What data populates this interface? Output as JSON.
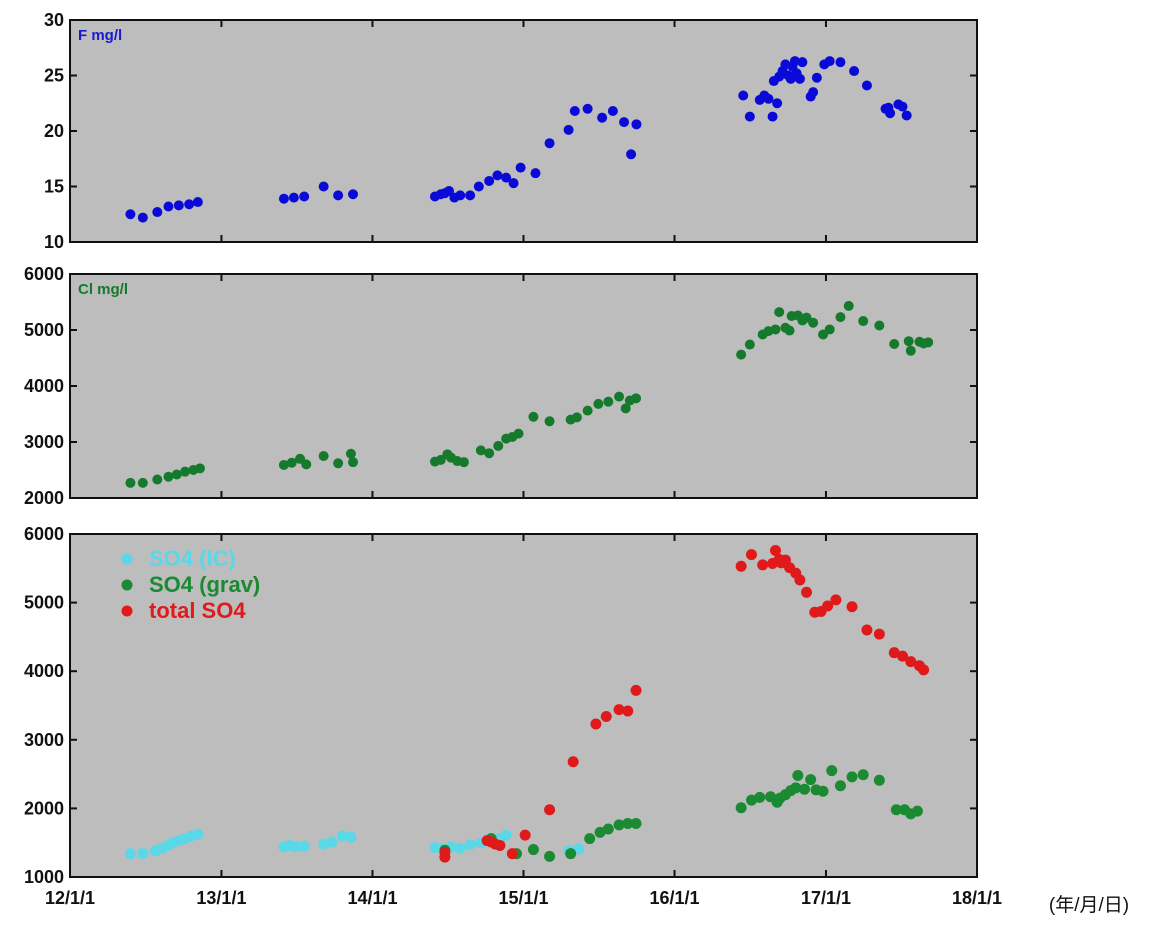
{
  "chart_data": [
    {
      "type": "scatter",
      "panel_label": "F mg/l",
      "label_color": "#1a1ad0",
      "ylim": [
        10,
        30
      ],
      "yticks": [
        10,
        15,
        20,
        25,
        30
      ],
      "grid": false,
      "series": [
        {
          "color": "#0a0ad8",
          "points": [
            [
              "2012-05-26",
              12.5
            ],
            [
              "2012-06-25",
              12.2
            ],
            [
              "2012-07-30",
              12.7
            ],
            [
              "2012-08-26",
              13.2
            ],
            [
              "2012-09-20",
              13.3
            ],
            [
              "2012-10-15",
              13.4
            ],
            [
              "2012-11-05",
              13.6
            ],
            [
              "2013-06-01",
              13.9
            ],
            [
              "2013-06-25",
              14.0
            ],
            [
              "2013-07-20",
              14.1
            ],
            [
              "2013-09-05",
              15.0
            ],
            [
              "2013-10-10",
              14.2
            ],
            [
              "2013-11-15",
              14.3
            ],
            [
              "2014-06-01",
              14.1
            ],
            [
              "2014-06-15",
              14.3
            ],
            [
              "2014-06-25",
              14.4
            ],
            [
              "2014-07-05",
              14.6
            ],
            [
              "2014-07-18",
              14.0
            ],
            [
              "2014-08-01",
              14.2
            ],
            [
              "2014-08-25",
              14.2
            ],
            [
              "2014-09-15",
              15.0
            ],
            [
              "2014-10-10",
              15.5
            ],
            [
              "2014-10-30",
              16.0
            ],
            [
              "2014-11-20",
              15.8
            ],
            [
              "2014-12-08",
              15.3
            ],
            [
              "2014-12-25",
              16.7
            ],
            [
              "2015-01-30",
              16.2
            ],
            [
              "2015-03-05",
              18.9
            ],
            [
              "2015-04-20",
              20.1
            ],
            [
              "2015-05-05",
              21.8
            ],
            [
              "2015-06-05",
              22.0
            ],
            [
              "2015-07-10",
              21.2
            ],
            [
              "2015-08-05",
              21.8
            ],
            [
              "2015-09-01",
              20.8
            ],
            [
              "2015-09-18",
              17.9
            ],
            [
              "2015-10-01",
              20.6
            ],
            [
              "2016-06-15",
              23.2
            ],
            [
              "2016-07-01",
              21.3
            ],
            [
              "2016-07-25",
              22.8
            ],
            [
              "2016-08-05",
              23.2
            ],
            [
              "2016-08-15",
              22.9
            ],
            [
              "2016-08-25",
              21.3
            ],
            [
              "2016-08-28",
              24.5
            ],
            [
              "2016-09-05",
              22.5
            ],
            [
              "2016-09-10",
              24.9
            ],
            [
              "2016-09-18",
              25.4
            ],
            [
              "2016-09-25",
              26.0
            ],
            [
              "2016-10-02",
              25.0
            ],
            [
              "2016-10-08",
              24.7
            ],
            [
              "2016-10-12",
              25.8
            ],
            [
              "2016-10-18",
              26.3
            ],
            [
              "2016-10-22",
              25.2
            ],
            [
              "2016-10-30",
              24.7
            ],
            [
              "2016-11-05",
              26.2
            ],
            [
              "2016-11-25",
              23.1
            ],
            [
              "2016-12-01",
              23.5
            ],
            [
              "2016-12-10",
              24.8
            ],
            [
              "2016-12-28",
              26.0
            ],
            [
              "2017-01-10",
              26.3
            ],
            [
              "2017-02-05",
              26.2
            ],
            [
              "2017-03-10",
              25.4
            ],
            [
              "2017-04-10",
              24.1
            ],
            [
              "2017-05-25",
              22.0
            ],
            [
              "2017-06-01",
              22.1
            ],
            [
              "2017-06-05",
              21.6
            ],
            [
              "2017-06-25",
              22.4
            ],
            [
              "2017-07-05",
              22.2
            ],
            [
              "2017-07-15",
              21.4
            ]
          ]
        }
      ]
    },
    {
      "type": "scatter",
      "panel_label": "Cl mg/l",
      "label_color": "#137a2a",
      "ylim": [
        2000,
        6000
      ],
      "yticks": [
        2000,
        3000,
        4000,
        5000,
        6000
      ],
      "grid": false,
      "series": [
        {
          "color": "#167a2c",
          "points": [
            [
              "2012-05-26",
              2270
            ],
            [
              "2012-06-25",
              2270
            ],
            [
              "2012-07-30",
              2330
            ],
            [
              "2012-08-26",
              2380
            ],
            [
              "2012-09-15",
              2420
            ],
            [
              "2012-10-05",
              2470
            ],
            [
              "2012-10-25",
              2500
            ],
            [
              "2012-11-10",
              2530
            ],
            [
              "2013-06-01",
              2590
            ],
            [
              "2013-06-20",
              2630
            ],
            [
              "2013-07-10",
              2700
            ],
            [
              "2013-07-25",
              2600
            ],
            [
              "2013-09-05",
              2750
            ],
            [
              "2013-10-10",
              2620
            ],
            [
              "2013-11-10",
              2790
            ],
            [
              "2013-11-15",
              2640
            ],
            [
              "2014-06-01",
              2650
            ],
            [
              "2014-06-15",
              2680
            ],
            [
              "2014-07-01",
              2780
            ],
            [
              "2014-07-10",
              2720
            ],
            [
              "2014-07-25",
              2660
            ],
            [
              "2014-08-10",
              2640
            ],
            [
              "2014-09-20",
              2850
            ],
            [
              "2014-10-10",
              2800
            ],
            [
              "2014-11-01",
              2930
            ],
            [
              "2014-11-20",
              3060
            ],
            [
              "2014-12-05",
              3090
            ],
            [
              "2014-12-20",
              3150
            ],
            [
              "2015-01-25",
              3450
            ],
            [
              "2015-03-05",
              3370
            ],
            [
              "2015-04-25",
              3400
            ],
            [
              "2015-05-10",
              3440
            ],
            [
              "2015-06-05",
              3560
            ],
            [
              "2015-07-01",
              3680
            ],
            [
              "2015-07-25",
              3720
            ],
            [
              "2015-08-20",
              3810
            ],
            [
              "2015-09-05",
              3600
            ],
            [
              "2015-09-15",
              3740
            ],
            [
              "2015-09-30",
              3780
            ],
            [
              "2016-06-10",
              4560
            ],
            [
              "2016-07-01",
              4740
            ],
            [
              "2016-08-01",
              4920
            ],
            [
              "2016-08-15",
              4980
            ],
            [
              "2016-09-01",
              5010
            ],
            [
              "2016-09-10",
              5320
            ],
            [
              "2016-09-25",
              5040
            ],
            [
              "2016-10-05",
              4990
            ],
            [
              "2016-10-10",
              5250
            ],
            [
              "2016-10-25",
              5260
            ],
            [
              "2016-11-05",
              5170
            ],
            [
              "2016-11-15",
              5220
            ],
            [
              "2016-12-01",
              5130
            ],
            [
              "2016-12-25",
              4920
            ],
            [
              "2017-01-10",
              5010
            ],
            [
              "2017-02-05",
              5230
            ],
            [
              "2017-02-25",
              5430
            ],
            [
              "2017-04-01",
              5160
            ],
            [
              "2017-05-10",
              5080
            ],
            [
              "2017-06-15",
              4750
            ],
            [
              "2017-07-20",
              4800
            ],
            [
              "2017-07-25",
              4630
            ],
            [
              "2017-08-15",
              4790
            ],
            [
              "2017-08-25",
              4760
            ],
            [
              "2017-09-05",
              4780
            ]
          ]
        }
      ]
    },
    {
      "type": "scatter",
      "ylim": [
        1000,
        6000
      ],
      "yticks": [
        1000,
        2000,
        3000,
        4000,
        5000,
        6000
      ],
      "grid": false,
      "legend_position": "top-left",
      "x_tick_labels": [
        "12/1/1",
        "13/1/1",
        "14/1/1",
        "15/1/1",
        "16/1/1",
        "17/1/1",
        "18/1/1"
      ],
      "x_unit_label": "(年/月/日)",
      "xlim": [
        "2012-01-01",
        "2018-01-01"
      ],
      "series": [
        {
          "name": "SO4 (IC)",
          "color": "#5ad8e8",
          "points": [
            [
              "2012-05-26",
              1340
            ],
            [
              "2012-06-25",
              1340
            ],
            [
              "2012-07-25",
              1380
            ],
            [
              "2012-08-10",
              1420
            ],
            [
              "2012-08-25",
              1460
            ],
            [
              "2012-09-05",
              1500
            ],
            [
              "2012-09-20",
              1530
            ],
            [
              "2012-10-05",
              1560
            ],
            [
              "2012-10-20",
              1600
            ],
            [
              "2012-11-05",
              1620
            ],
            [
              "2013-06-01",
              1440
            ],
            [
              "2013-06-15",
              1460
            ],
            [
              "2013-07-01",
              1440
            ],
            [
              "2013-07-20",
              1450
            ],
            [
              "2013-09-05",
              1480
            ],
            [
              "2013-09-25",
              1510
            ],
            [
              "2013-10-20",
              1600
            ],
            [
              "2013-11-10",
              1580
            ],
            [
              "2014-06-01",
              1430
            ],
            [
              "2014-06-20",
              1410
            ],
            [
              "2014-07-10",
              1440
            ],
            [
              "2014-08-01",
              1420
            ],
            [
              "2014-08-25",
              1470
            ],
            [
              "2014-09-20",
              1500
            ],
            [
              "2014-10-10",
              1550
            ],
            [
              "2014-10-25",
              1520
            ],
            [
              "2014-11-05",
              1560
            ],
            [
              "2014-11-20",
              1610
            ],
            [
              "2015-04-20",
              1390
            ],
            [
              "2015-05-15",
              1410
            ]
          ]
        },
        {
          "name": "SO4 (grav)",
          "color": "#1a8a33",
          "points": [
            [
              "2014-06-25",
              1390
            ],
            [
              "2014-10-15",
              1560
            ],
            [
              "2014-12-15",
              1340
            ],
            [
              "2015-01-25",
              1400
            ],
            [
              "2015-03-05",
              1300
            ],
            [
              "2015-04-25",
              1340
            ],
            [
              "2015-06-10",
              1560
            ],
            [
              "2015-07-05",
              1650
            ],
            [
              "2015-07-25",
              1700
            ],
            [
              "2015-08-20",
              1760
            ],
            [
              "2015-09-10",
              1780
            ],
            [
              "2015-09-30",
              1780
            ],
            [
              "2016-06-10",
              2010
            ],
            [
              "2016-07-05",
              2120
            ],
            [
              "2016-07-25",
              2160
            ],
            [
              "2016-08-20",
              2170
            ],
            [
              "2016-09-05",
              2090
            ],
            [
              "2016-09-12",
              2150
            ],
            [
              "2016-09-25",
              2200
            ],
            [
              "2016-10-08",
              2260
            ],
            [
              "2016-10-20",
              2300
            ],
            [
              "2016-10-25",
              2480
            ],
            [
              "2016-11-10",
              2280
            ],
            [
              "2016-11-25",
              2420
            ],
            [
              "2016-12-08",
              2270
            ],
            [
              "2016-12-25",
              2250
            ],
            [
              "2017-01-15",
              2550
            ],
            [
              "2017-02-05",
              2330
            ],
            [
              "2017-03-05",
              2460
            ],
            [
              "2017-04-01",
              2490
            ],
            [
              "2017-05-10",
              2410
            ],
            [
              "2017-06-20",
              1980
            ],
            [
              "2017-07-10",
              1980
            ],
            [
              "2017-07-25",
              1920
            ],
            [
              "2017-08-10",
              1960
            ]
          ]
        },
        {
          "name": "total SO4",
          "color": "#e01a1a",
          "points": [
            [
              "2014-06-25",
              1360
            ],
            [
              "2014-06-25",
              1290
            ],
            [
              "2014-10-05",
              1530
            ],
            [
              "2014-10-15",
              1510
            ],
            [
              "2014-10-25",
              1480
            ],
            [
              "2014-11-05",
              1460
            ],
            [
              "2014-12-05",
              1340
            ],
            [
              "2015-01-05",
              1610
            ],
            [
              "2015-03-05",
              1980
            ],
            [
              "2015-05-01",
              2680
            ],
            [
              "2015-06-25",
              3230
            ],
            [
              "2015-07-20",
              3340
            ],
            [
              "2015-08-20",
              3440
            ],
            [
              "2015-09-10",
              3420
            ],
            [
              "2015-09-30",
              3720
            ],
            [
              "2016-06-10",
              5530
            ],
            [
              "2016-07-05",
              5700
            ],
            [
              "2016-08-01",
              5550
            ],
            [
              "2016-08-25",
              5570
            ],
            [
              "2016-09-01",
              5760
            ],
            [
              "2016-09-10",
              5630
            ],
            [
              "2016-09-15",
              5580
            ],
            [
              "2016-09-25",
              5620
            ],
            [
              "2016-10-05",
              5510
            ],
            [
              "2016-10-20",
              5430
            ],
            [
              "2016-10-30",
              5330
            ],
            [
              "2016-11-15",
              5150
            ],
            [
              "2016-12-05",
              4860
            ],
            [
              "2016-12-20",
              4870
            ],
            [
              "2017-01-05",
              4950
            ],
            [
              "2017-01-25",
              5040
            ],
            [
              "2017-03-05",
              4940
            ],
            [
              "2017-04-10",
              4600
            ],
            [
              "2017-05-10",
              4540
            ],
            [
              "2017-06-15",
              4270
            ],
            [
              "2017-07-05",
              4220
            ],
            [
              "2017-07-25",
              4140
            ],
            [
              "2017-08-15",
              4080
            ],
            [
              "2017-08-25",
              4020
            ]
          ]
        }
      ]
    }
  ]
}
